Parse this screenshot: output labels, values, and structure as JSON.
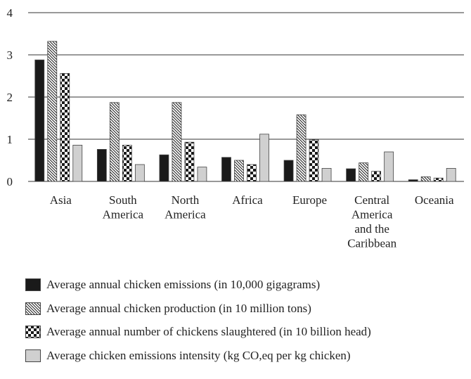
{
  "chart_data": {
    "type": "bar",
    "categories": [
      "Asia",
      "South America",
      "North America",
      "Africa",
      "Europe",
      "Central America and the Caribbean",
      "Oceania"
    ],
    "category_label_lines": [
      [
        "Asia"
      ],
      [
        "South",
        "America"
      ],
      [
        "North",
        "America"
      ],
      [
        "Africa"
      ],
      [
        "Europe"
      ],
      [
        "Central",
        "America",
        "and the",
        "Caribbean"
      ],
      [
        "Oceania"
      ]
    ],
    "ylim": [
      0,
      4
    ],
    "yticks": [
      "0",
      "1",
      "2",
      "3",
      "4"
    ],
    "grid": true,
    "legend_position": "bottom",
    "series": [
      {
        "name": "Average annual chicken emissions (in 10,000 gigagrams)",
        "pattern": "solid-black",
        "values": [
          2.88,
          0.76,
          0.63,
          0.57,
          0.5,
          0.3,
          0.04
        ]
      },
      {
        "name": "Average annual chicken production (in 10 million tons)",
        "pattern": "diagonal-hatch",
        "values": [
          3.32,
          1.87,
          1.87,
          0.5,
          1.58,
          0.44,
          0.11
        ]
      },
      {
        "name": "Average annual number of chickens slaughtered (in 10 billion head)",
        "pattern": "checkerboard",
        "values": [
          2.56,
          0.86,
          0.93,
          0.4,
          0.99,
          0.24,
          0.08
        ]
      },
      {
        "name": "Average chicken emissions intensity (kg CO,eq per kg chicken)",
        "pattern": "light-gray",
        "values": [
          0.86,
          0.4,
          0.34,
          1.12,
          0.31,
          0.7,
          0.31
        ]
      }
    ]
  },
  "colors": {
    "solid": "#1a1a1a",
    "gray": "#d0d0d0",
    "grid": "#333333",
    "border": "#444444"
  }
}
